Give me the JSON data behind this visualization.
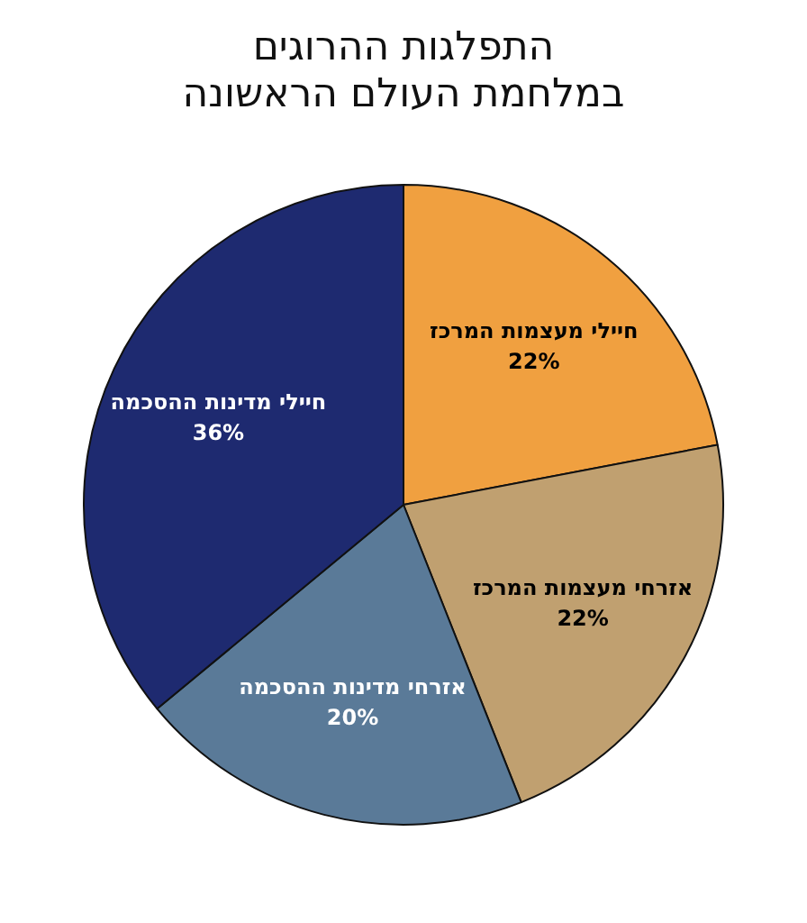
{
  "chart_data": {
    "type": "pie",
    "title": "התפלגות ההרוגים\nבמלחמת העולם הראשונה",
    "categories": [
      "חיילי מעצמות המרכז",
      "אזרחי מעצמות המרכז",
      "אזרחי מדינות ההסכמה",
      "חיילי מדינות ההסכמה"
    ],
    "values": [
      22,
      22,
      20,
      36
    ],
    "value_labels": [
      "22%",
      "22%",
      "20%",
      "36%"
    ],
    "colors": [
      "#f0a040",
      "#c0a070",
      "#5a7a98",
      "#1e2a70"
    ],
    "legend": false
  }
}
